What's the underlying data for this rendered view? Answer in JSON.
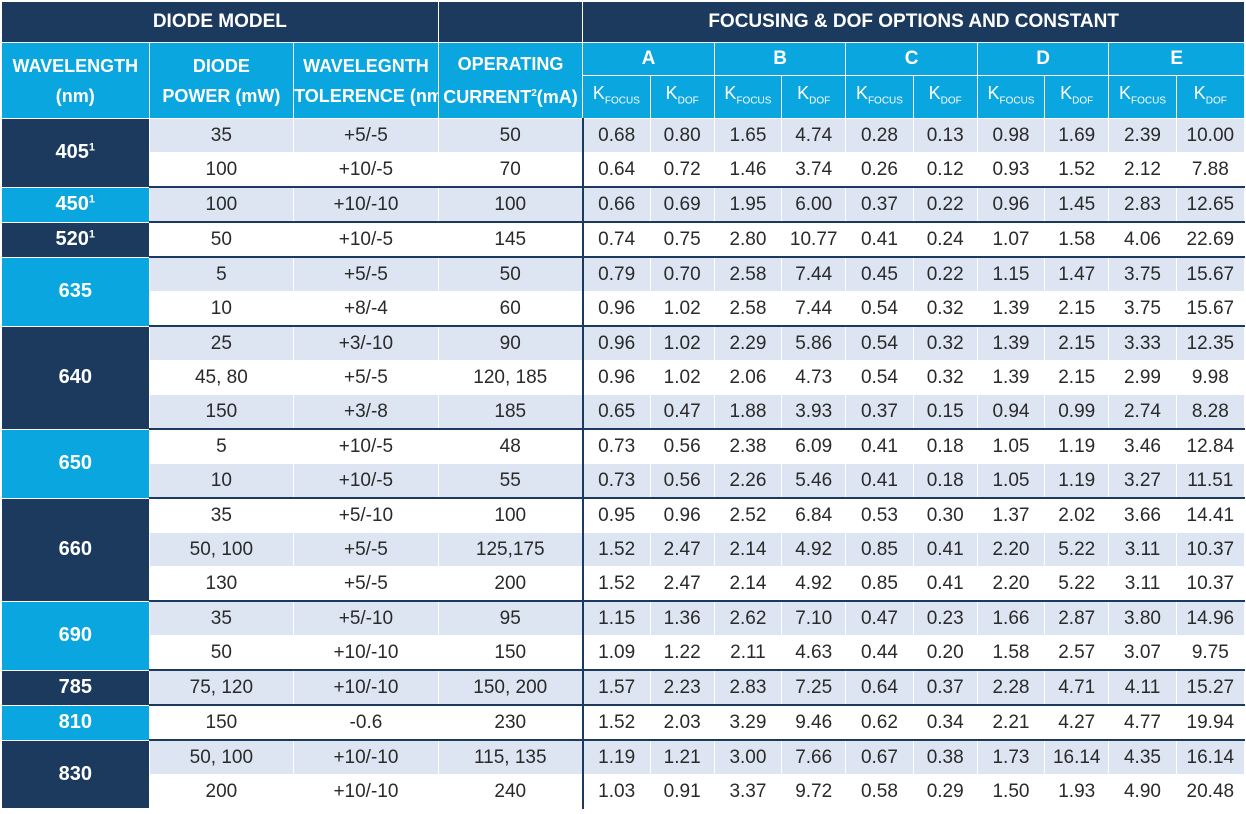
{
  "header": {
    "diode_model": "DIODE MODEL",
    "focusing": "FOCUSING & DOF OPTIONS AND CONSTANT",
    "wavelength": "WAVELENGTH",
    "wavelength_unit": "(nm)",
    "diode": "DIODE",
    "power": "POWER (mW)",
    "wavelegnth": "WAVELEGNTH",
    "tolerence": "TOLERENCE (nm)",
    "operating": "OPERATING",
    "current": "CURRENT",
    "current_sup": "2",
    "current_unit": "(mA)",
    "letters": [
      "A",
      "B",
      "C",
      "D",
      "E"
    ],
    "k": "K",
    "focus": "FOCUS",
    "dof": "DOF"
  },
  "wavelengths": [
    {
      "label": "405",
      "sup": "1",
      "color": "#1c3a5e"
    },
    {
      "label": "450",
      "sup": "1",
      "color": "#0aa6df"
    },
    {
      "label": "520",
      "sup": "1",
      "color": "#1c3a5e"
    },
    {
      "label": "635",
      "sup": "",
      "color": "#0aa6df"
    },
    {
      "label": "640",
      "sup": "",
      "color": "#1c3a5e"
    },
    {
      "label": "650",
      "sup": "",
      "color": "#0aa6df"
    },
    {
      "label": "660",
      "sup": "",
      "color": "#1c3a5e"
    },
    {
      "label": "690",
      "sup": "",
      "color": "#0aa6df"
    },
    {
      "label": "785",
      "sup": "",
      "color": "#1c3a5e"
    },
    {
      "label": "810",
      "sup": "",
      "color": "#0aa6df"
    },
    {
      "label": "830",
      "sup": "",
      "color": "#1c3a5e"
    }
  ],
  "rows": [
    [
      "35",
      "+5/-5",
      "50",
      "0.68",
      "0.80",
      "1.65",
      "4.74",
      "0.28",
      "0.13",
      "0.98",
      "1.69",
      "2.39",
      "10.00"
    ],
    [
      "100",
      "+10/-5",
      "70",
      "0.64",
      "0.72",
      "1.46",
      "3.74",
      "0.26",
      "0.12",
      "0.93",
      "1.52",
      "2.12",
      "7.88"
    ],
    [
      "100",
      "+10/-10",
      "100",
      "0.66",
      "0.69",
      "1.95",
      "6.00",
      "0.37",
      "0.22",
      "0.96",
      "1.45",
      "2.83",
      "12.65"
    ],
    [
      "50",
      "+10/-5",
      "145",
      "0.74",
      "0.75",
      "2.80",
      "10.77",
      "0.41",
      "0.24",
      "1.07",
      "1.58",
      "4.06",
      "22.69"
    ],
    [
      "5",
      "+5/-5",
      "50",
      "0.79",
      "0.70",
      "2.58",
      "7.44",
      "0.45",
      "0.22",
      "1.15",
      "1.47",
      "3.75",
      "15.67"
    ],
    [
      "10",
      "+8/-4",
      "60",
      "0.96",
      "1.02",
      "2.58",
      "7.44",
      "0.54",
      "0.32",
      "1.39",
      "2.15",
      "3.75",
      "15.67"
    ],
    [
      "25",
      "+3/-10",
      "90",
      "0.96",
      "1.02",
      "2.29",
      "5.86",
      "0.54",
      "0.32",
      "1.39",
      "2.15",
      "3.33",
      "12.35"
    ],
    [
      "45, 80",
      "+5/-5",
      "120, 185",
      "0.96",
      "1.02",
      "2.06",
      "4.73",
      "0.54",
      "0.32",
      "1.39",
      "2.15",
      "2.99",
      "9.98"
    ],
    [
      "150",
      "+3/-8",
      "185",
      "0.65",
      "0.47",
      "1.88",
      "3.93",
      "0.37",
      "0.15",
      "0.94",
      "0.99",
      "2.74",
      "8.28"
    ],
    [
      "5",
      "+10/-5",
      "48",
      "0.73",
      "0.56",
      "2.38",
      "6.09",
      "0.41",
      "0.18",
      "1.05",
      "1.19",
      "3.46",
      "12.84"
    ],
    [
      "10",
      "+10/-5",
      "55",
      "0.73",
      "0.56",
      "2.26",
      "5.46",
      "0.41",
      "0.18",
      "1.05",
      "1.19",
      "3.27",
      "11.51"
    ],
    [
      "35",
      "+5/-10",
      "100",
      "0.95",
      "0.96",
      "2.52",
      "6.84",
      "0.53",
      "0.30",
      "1.37",
      "2.02",
      "3.66",
      "14.41"
    ],
    [
      "50, 100",
      "+5/-5",
      "125,175",
      "1.52",
      "2.47",
      "2.14",
      "4.92",
      "0.85",
      "0.41",
      "2.20",
      "5.22",
      "3.11",
      "10.37"
    ],
    [
      "130",
      "+5/-5",
      "200",
      "1.52",
      "2.47",
      "2.14",
      "4.92",
      "0.85",
      "0.41",
      "2.20",
      "5.22",
      "3.11",
      "10.37"
    ],
    [
      "35",
      "+5/-10",
      "95",
      "1.15",
      "1.36",
      "2.62",
      "7.10",
      "0.47",
      "0.23",
      "1.66",
      "2.87",
      "3.80",
      "14.96"
    ],
    [
      "50",
      "+10/-10",
      "150",
      "1.09",
      "1.22",
      "2.11",
      "4.63",
      "0.44",
      "0.20",
      "1.58",
      "2.57",
      "3.07",
      "9.75"
    ],
    [
      "75, 120",
      "+10/-10",
      "150, 200",
      "1.57",
      "2.23",
      "2.83",
      "7.25",
      "0.64",
      "0.37",
      "2.28",
      "4.71",
      "4.11",
      "15.27"
    ],
    [
      "150",
      "-0.6",
      "230",
      "1.52",
      "2.03",
      "3.29",
      "9.46",
      "0.62",
      "0.34",
      "2.21",
      "4.27",
      "4.77",
      "19.94"
    ],
    [
      "50, 100",
      "+10/-10",
      "115, 135",
      "1.19",
      "1.21",
      "3.00",
      "7.66",
      "0.67",
      "0.38",
      "1.73",
      "16.14",
      "4.35",
      "16.14"
    ],
    [
      "200",
      "+10/-10",
      "240",
      "1.03",
      "0.91",
      "3.37",
      "9.72",
      "0.58",
      "0.29",
      "1.50",
      "1.93",
      "4.90",
      "20.48"
    ]
  ]
}
